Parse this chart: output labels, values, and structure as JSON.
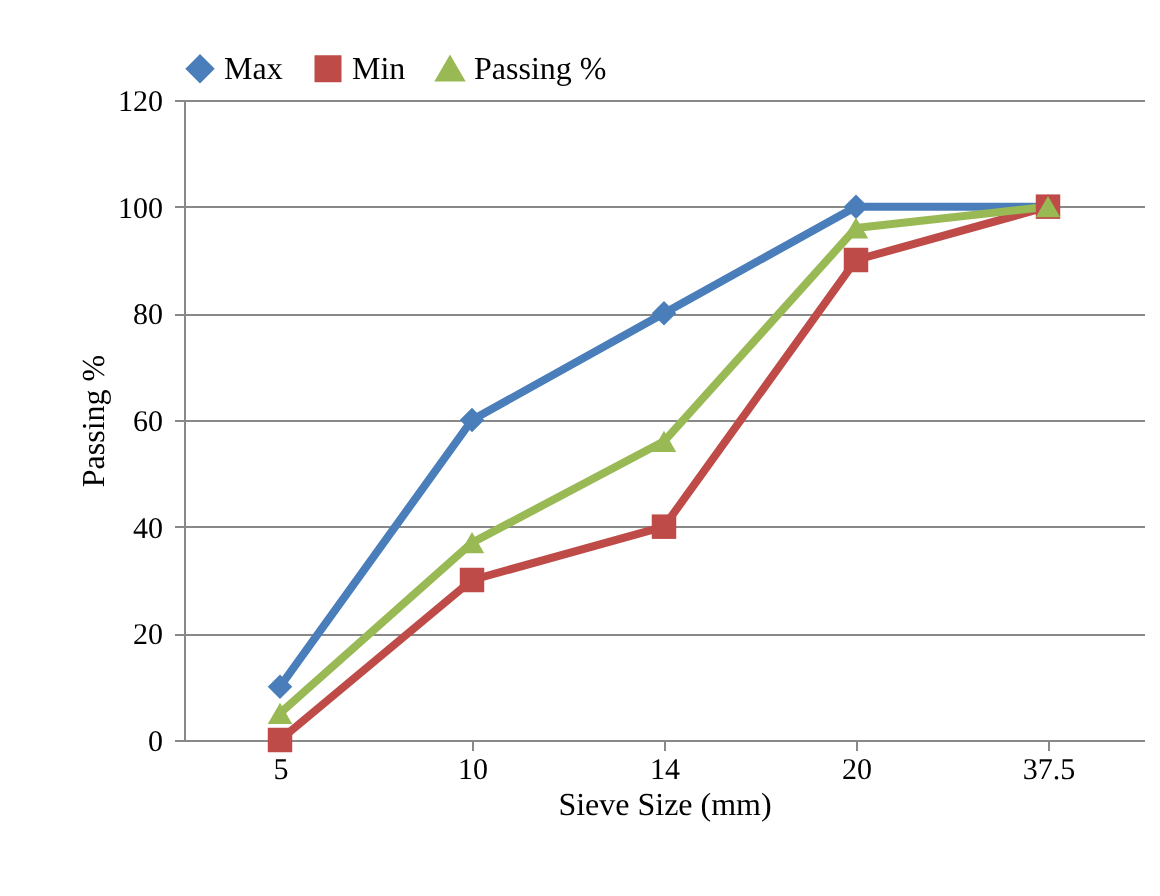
{
  "chart_data": {
    "type": "line",
    "xlabel": "Sieve Size (mm)",
    "ylabel": "Passing %",
    "categories": [
      "5",
      "10",
      "14",
      "20",
      "37.5"
    ],
    "series": [
      {
        "name": "Max",
        "color": "#4a7ebb",
        "marker": "diamond",
        "values": [
          10,
          60,
          80,
          100,
          100
        ]
      },
      {
        "name": "Min",
        "color": "#be4b48",
        "marker": "square",
        "values": [
          0,
          30,
          40,
          90,
          100
        ]
      },
      {
        "name": "Passing %",
        "color": "#98b954",
        "marker": "triangle",
        "values": [
          5,
          37,
          56,
          96,
          100
        ]
      }
    ],
    "ylim": [
      0,
      120
    ],
    "yticks": [
      0,
      20,
      40,
      60,
      80,
      100,
      120
    ],
    "grid": "y",
    "legend": "top",
    "line_style": "solid"
  }
}
